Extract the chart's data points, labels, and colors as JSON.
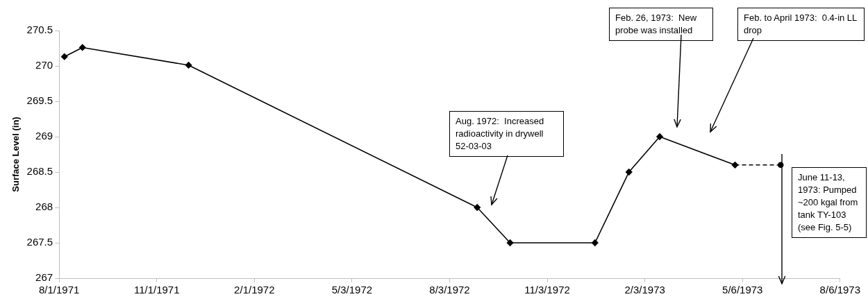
{
  "chart_data": {
    "type": "line",
    "ylabel": "Surface Level (in)",
    "ylim": [
      267,
      270.5
    ],
    "yticks": [
      267,
      267.5,
      268,
      268.5,
      269,
      269.5,
      270,
      270.5
    ],
    "xlim": [
      "1971-08-01",
      "1973-08-06"
    ],
    "xticks": [
      {
        "value": "1971-08-01",
        "label": "8/1/1971"
      },
      {
        "value": "1971-11-01",
        "label": "11/1/1971"
      },
      {
        "value": "1972-02-01",
        "label": "2/1/1972"
      },
      {
        "value": "1972-05-03",
        "label": "5/3/1972"
      },
      {
        "value": "1972-08-03",
        "label": "8/3/1972"
      },
      {
        "value": "1972-11-03",
        "label": "11/3/1972"
      },
      {
        "value": "1973-02-03",
        "label": "2/3/1973"
      },
      {
        "value": "1973-05-06",
        "label": "5/6/1973"
      },
      {
        "value": "1973-08-06",
        "label": "8/6/1973"
      }
    ],
    "grid": false,
    "legend": false,
    "series": [
      {
        "color": "#000000",
        "marker": "diamond",
        "line_style": "solid",
        "x": [
          "1971-08-06",
          "1971-08-23",
          "1971-12-01",
          "1972-08-29",
          "1972-09-29",
          "1972-12-18",
          "1973-01-19",
          "1973-02-17",
          "1973-04-29"
        ],
        "values": [
          270.13,
          270.26,
          270.01,
          268.0,
          267.5,
          267.5,
          268.5,
          269.0,
          268.6
        ]
      },
      {
        "color": "#000000",
        "marker": "circle",
        "line_style": "dashed",
        "x": [
          "1973-04-29",
          "1973-06-11"
        ],
        "values": [
          268.6,
          268.6
        ]
      }
    ],
    "annotations": [
      "Aug. 1972:  Increased radioactivity in drywell 52-03-03",
      "Feb. 26, 1973:  New probe was installed",
      "Feb. to April 1973:  0.4-in LL drop",
      "June 11-13, 1973: Pumped ~200 kgal from tank TY-103 (see Fig. 5-5)"
    ]
  }
}
